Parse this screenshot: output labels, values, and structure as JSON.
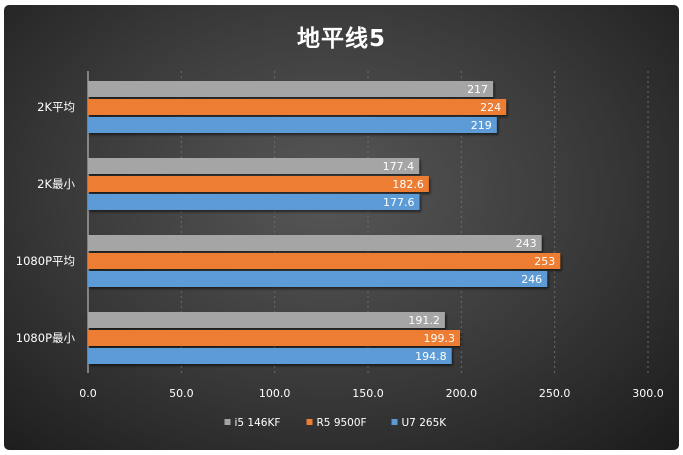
{
  "chart_data": {
    "type": "bar",
    "orientation": "horizontal",
    "title": "地平线5",
    "categories": [
      "2K平均",
      "2K最小",
      "1080P平均",
      "1080P最小"
    ],
    "series": [
      {
        "name": "i5 146KF",
        "color": "#a5a5a5",
        "values": [
          217,
          177.4,
          243,
          191.2
        ],
        "labels": [
          "217",
          "177.4",
          "243",
          "191.2"
        ]
      },
      {
        "name": "R5 9500F",
        "color": "#ed7d31",
        "values": [
          224,
          182.6,
          253,
          199.3
        ],
        "labels": [
          "224",
          "182.6",
          "253",
          "199.3"
        ]
      },
      {
        "name": "U7 265K",
        "color": "#5b9bd5",
        "values": [
          219,
          177.6,
          246,
          194.8
        ],
        "labels": [
          "219",
          "177.6",
          "246",
          "194.8"
        ]
      }
    ],
    "xlim": [
      0,
      300
    ],
    "xticks": [
      "0.0",
      "50.0",
      "100.0",
      "150.0",
      "200.0",
      "250.0",
      "300.0"
    ],
    "grid": true,
    "legend_position": "bottom"
  }
}
